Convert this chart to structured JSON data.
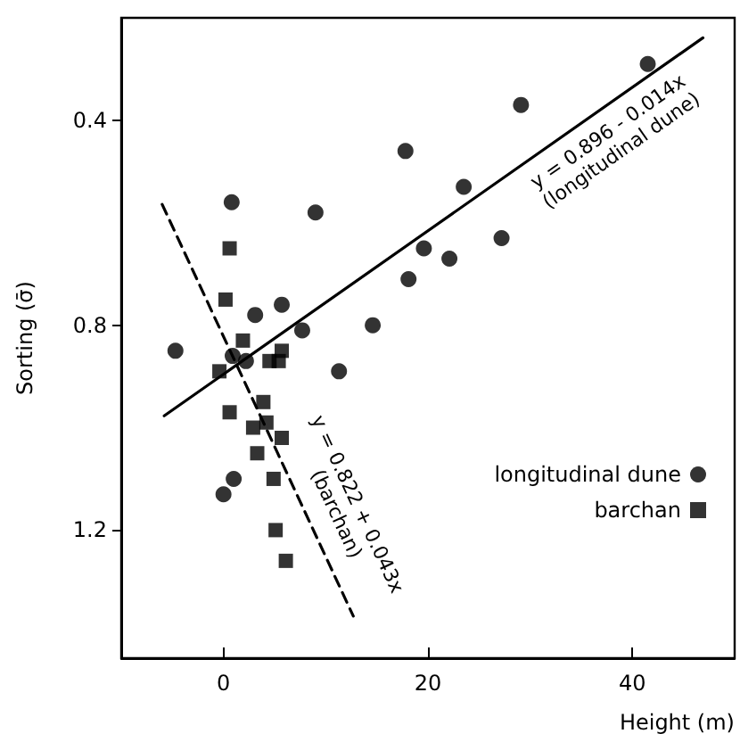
{
  "chart_data": {
    "type": "scatter",
    "xlabel": "Height (m)",
    "ylabel": "Sorting (σ̄)",
    "xlim": [
      -10,
      50
    ],
    "xticks": [
      0,
      20,
      40
    ],
    "ylim": [
      1.45,
      0.2
    ],
    "yticks": [
      0.4,
      0.8,
      1.2
    ],
    "grid": false,
    "legend": "right",
    "series": [
      {
        "name": "longitudinal dune",
        "color": "#000000",
        "marker": "circle",
        "x": [
          41.5,
          29.1,
          17.8,
          23.5,
          0.8,
          9.0,
          19.6,
          22.1,
          27.2,
          18.1,
          5.7,
          3.1,
          7.7,
          14.6,
          -4.7,
          0.9,
          2.2,
          11.3,
          0.0,
          1.0
        ],
        "values": [
          0.29,
          0.37,
          0.46,
          0.53,
          0.56,
          0.58,
          0.65,
          0.67,
          0.63,
          0.71,
          0.76,
          0.78,
          0.81,
          0.8,
          0.85,
          0.86,
          0.87,
          0.89,
          1.13,
          1.1
        ]
      },
      {
        "name": "barchan",
        "color": "#000000",
        "marker": "square",
        "x": [
          0.6,
          0.2,
          1.9,
          5.7,
          4.5,
          5.4,
          -0.4,
          0.6,
          3.9,
          2.9,
          4.2,
          5.7,
          3.3,
          4.9,
          5.1,
          6.1
        ],
        "values": [
          0.65,
          0.75,
          0.83,
          0.85,
          0.87,
          0.87,
          0.89,
          0.97,
          0.95,
          1.0,
          0.99,
          1.02,
          1.05,
          1.1,
          1.2,
          1.26
        ]
      },
      {
        "type": "line",
        "color": "#000000",
        "marker": "none",
        "line_style": "solid",
        "x": [
          -5.8,
          46.9
        ],
        "values": [
          0.977,
          0.239
        ]
      },
      {
        "type": "line",
        "color": "#000000",
        "marker": "none",
        "line_style": "dashed",
        "x": [
          -6.0,
          12.7
        ],
        "values": [
          0.564,
          1.368
        ]
      }
    ],
    "annotations": [
      "y = 0.896 - 0.014x\n(longitudinal dune)",
      "y = 0.822 + 0.043x\n(barchan)"
    ]
  }
}
